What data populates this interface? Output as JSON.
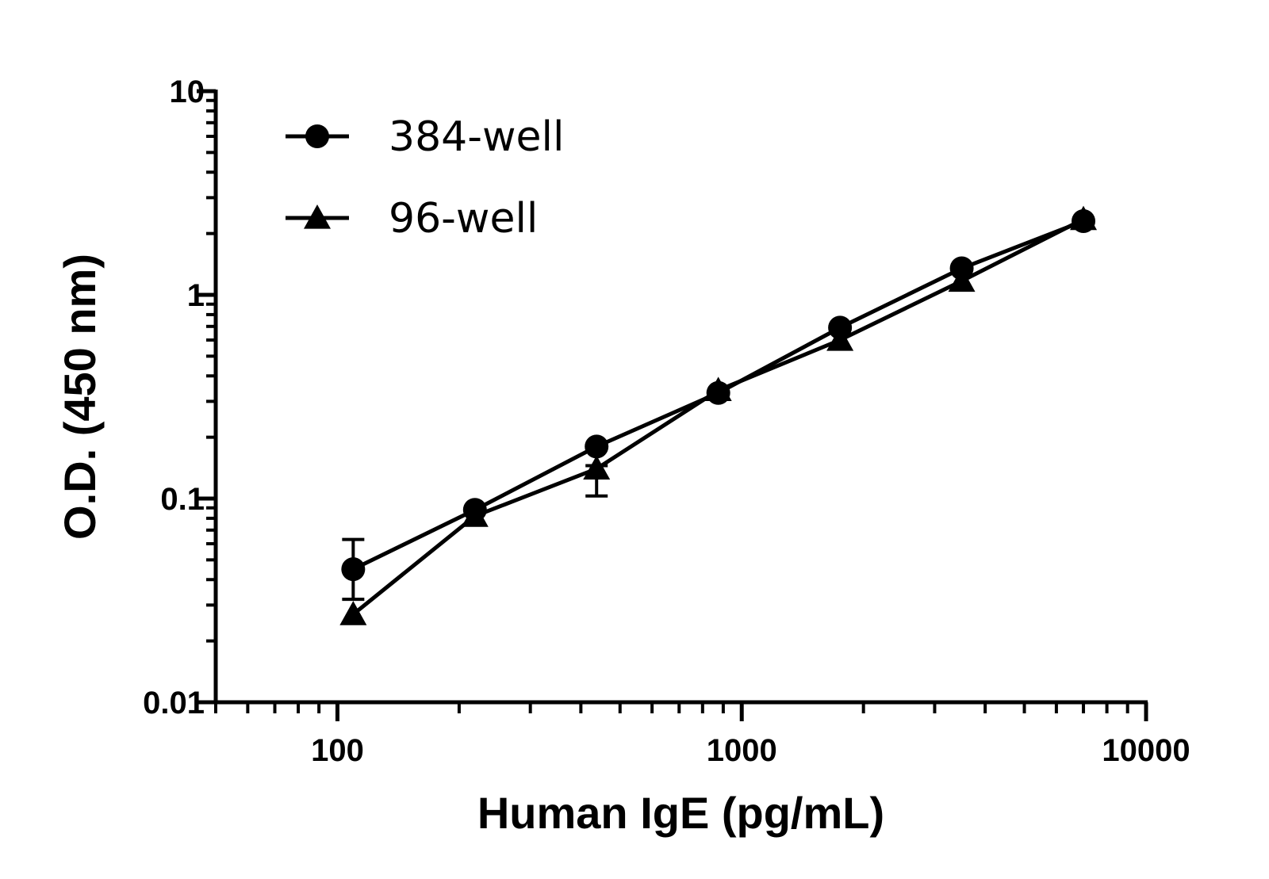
{
  "chart_data": {
    "type": "line",
    "xlabel": "Human IgE (pg/mL)",
    "ylabel": "O.D. (450 nm)",
    "x_scale": "log",
    "y_scale": "log",
    "xlim": [
      50,
      10000
    ],
    "ylim": [
      0.01,
      10
    ],
    "x_ticks": [
      {
        "value": 100,
        "label": "100"
      },
      {
        "value": 1000,
        "label": "1000"
      },
      {
        "value": 10000,
        "label": "10000"
      }
    ],
    "y_ticks": [
      {
        "value": 0.01,
        "label": "0.01"
      },
      {
        "value": 0.1,
        "label": "0.1"
      },
      {
        "value": 1,
        "label": "1"
      },
      {
        "value": 10,
        "label": "10"
      }
    ],
    "grid": false,
    "legend_position": "top-left",
    "series": [
      {
        "name": "384-well",
        "marker": "circle",
        "color": "#000000",
        "x": [
          109.4,
          218.8,
          437.5,
          875,
          1750,
          3500,
          7000
        ],
        "y": [
          0.045,
          0.088,
          0.18,
          0.33,
          0.69,
          1.35,
          2.3
        ],
        "err_low": [
          0.032,
          null,
          null,
          null,
          null,
          null,
          null
        ],
        "err_high": [
          0.063,
          null,
          null,
          null,
          null,
          null,
          null
        ]
      },
      {
        "name": "96-well",
        "marker": "triangle",
        "color": "#000000",
        "x": [
          109.4,
          218.8,
          437.5,
          875,
          1750,
          3500,
          7000
        ],
        "y": [
          0.027,
          0.082,
          0.14,
          0.34,
          0.6,
          1.17,
          2.35
        ],
        "err_low": [
          null,
          null,
          0.103,
          null,
          null,
          null,
          null
        ],
        "err_high": [
          null,
          null,
          0.145,
          null,
          null,
          null,
          null
        ]
      }
    ]
  }
}
